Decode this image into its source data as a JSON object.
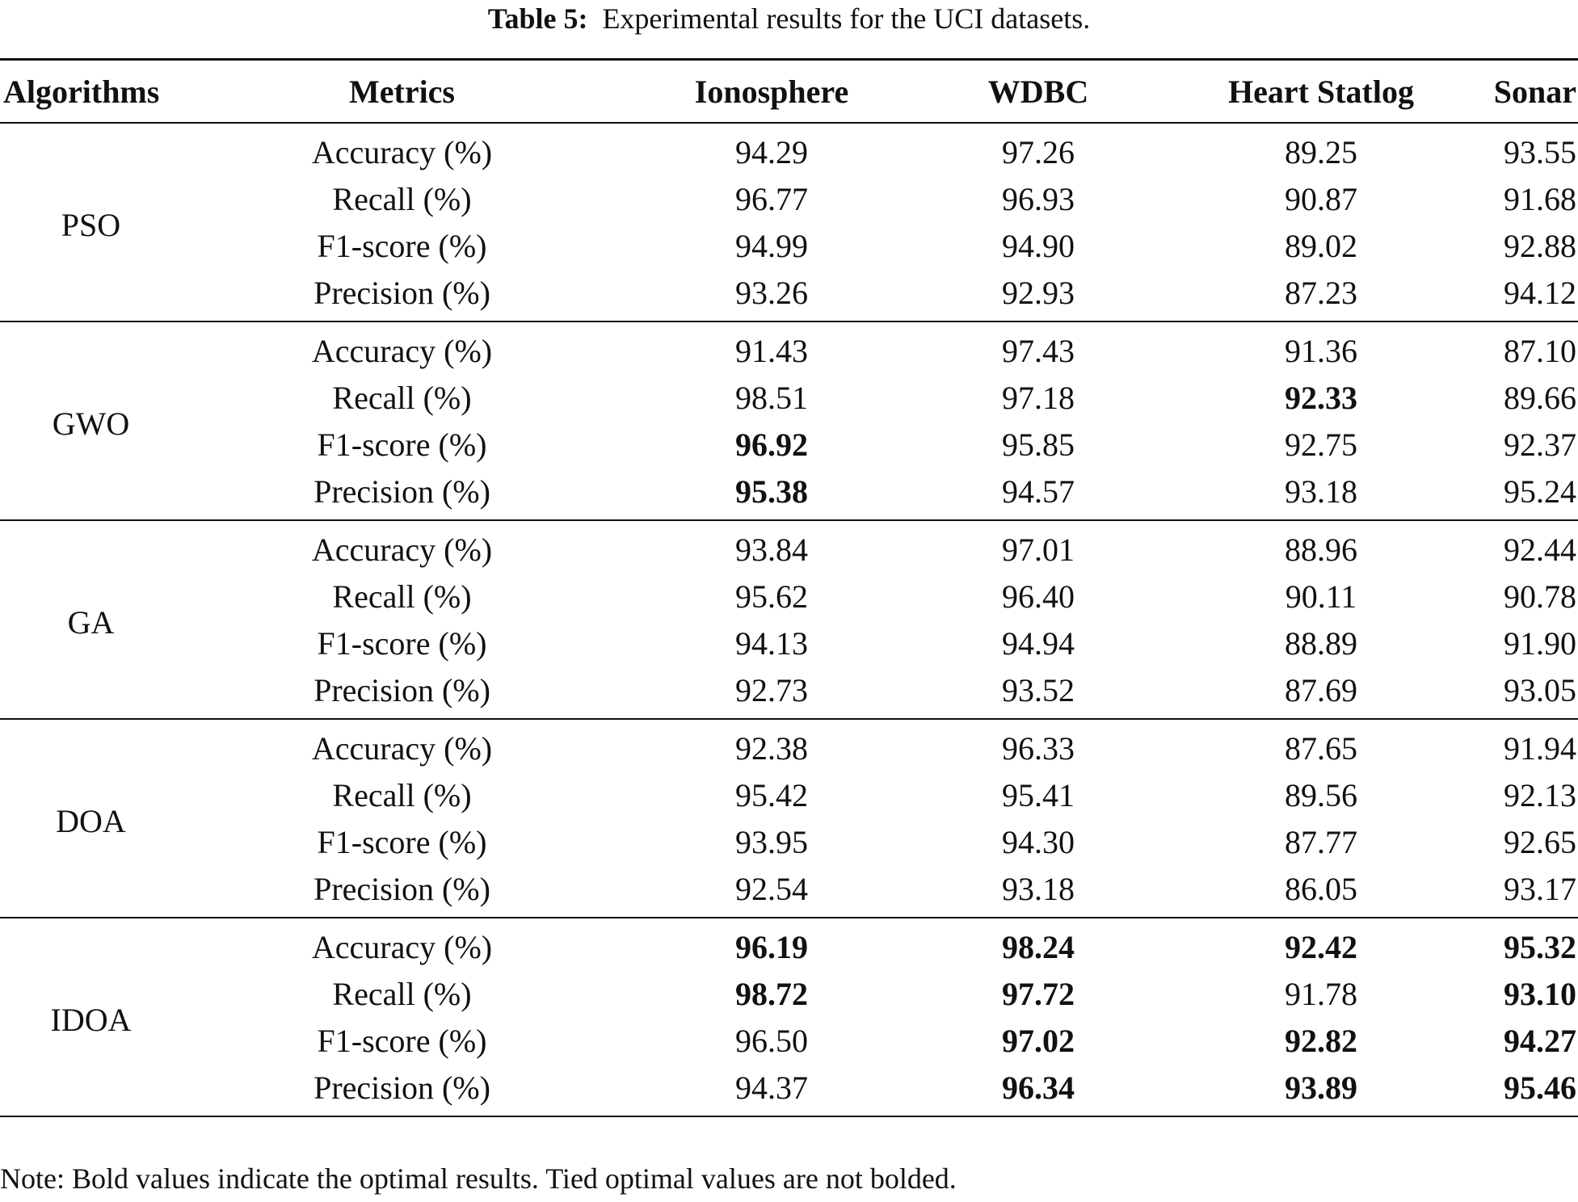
{
  "caption": {
    "label": "Table 5:",
    "text": "Experimental results for the UCI datasets."
  },
  "table": {
    "headers": [
      "Algorithms",
      "Metrics",
      "Ionosphere",
      "WDBC",
      "Heart Statlog",
      "Sonar"
    ],
    "groups": [
      {
        "algorithm": "PSO",
        "rows": [
          {
            "metric": "Accuracy (%)",
            "values": [
              "94.29",
              "97.26",
              "89.25",
              "93.55"
            ],
            "bold": [
              false,
              false,
              false,
              false
            ]
          },
          {
            "metric": "Recall (%)",
            "values": [
              "96.77",
              "96.93",
              "90.87",
              "91.68"
            ],
            "bold": [
              false,
              false,
              false,
              false
            ]
          },
          {
            "metric": "F1-score (%)",
            "values": [
              "94.99",
              "94.90",
              "89.02",
              "92.88"
            ],
            "bold": [
              false,
              false,
              false,
              false
            ]
          },
          {
            "metric": "Precision (%)",
            "values": [
              "93.26",
              "92.93",
              "87.23",
              "94.12"
            ],
            "bold": [
              false,
              false,
              false,
              false
            ]
          }
        ]
      },
      {
        "algorithm": "GWO",
        "rows": [
          {
            "metric": "Accuracy (%)",
            "values": [
              "91.43",
              "97.43",
              "91.36",
              "87.10"
            ],
            "bold": [
              false,
              false,
              false,
              false
            ]
          },
          {
            "metric": "Recall (%)",
            "values": [
              "98.51",
              "97.18",
              "92.33",
              "89.66"
            ],
            "bold": [
              false,
              false,
              true,
              false
            ]
          },
          {
            "metric": "F1-score (%)",
            "values": [
              "96.92",
              "95.85",
              "92.75",
              "92.37"
            ],
            "bold": [
              true,
              false,
              false,
              false
            ]
          },
          {
            "metric": "Precision (%)",
            "values": [
              "95.38",
              "94.57",
              "93.18",
              "95.24"
            ],
            "bold": [
              true,
              false,
              false,
              false
            ]
          }
        ]
      },
      {
        "algorithm": "GA",
        "rows": [
          {
            "metric": "Accuracy (%)",
            "values": [
              "93.84",
              "97.01",
              "88.96",
              "92.44"
            ],
            "bold": [
              false,
              false,
              false,
              false
            ]
          },
          {
            "metric": "Recall (%)",
            "values": [
              "95.62",
              "96.40",
              "90.11",
              "90.78"
            ],
            "bold": [
              false,
              false,
              false,
              false
            ]
          },
          {
            "metric": "F1-score (%)",
            "values": [
              "94.13",
              "94.94",
              "88.89",
              "91.90"
            ],
            "bold": [
              false,
              false,
              false,
              false
            ]
          },
          {
            "metric": "Precision (%)",
            "values": [
              "92.73",
              "93.52",
              "87.69",
              "93.05"
            ],
            "bold": [
              false,
              false,
              false,
              false
            ]
          }
        ]
      },
      {
        "algorithm": "DOA",
        "rows": [
          {
            "metric": "Accuracy (%)",
            "values": [
              "92.38",
              "96.33",
              "87.65",
              "91.94"
            ],
            "bold": [
              false,
              false,
              false,
              false
            ]
          },
          {
            "metric": "Recall (%)",
            "values": [
              "95.42",
              "95.41",
              "89.56",
              "92.13"
            ],
            "bold": [
              false,
              false,
              false,
              false
            ]
          },
          {
            "metric": "F1-score (%)",
            "values": [
              "93.95",
              "94.30",
              "87.77",
              "92.65"
            ],
            "bold": [
              false,
              false,
              false,
              false
            ]
          },
          {
            "metric": "Precision (%)",
            "values": [
              "92.54",
              "93.18",
              "86.05",
              "93.17"
            ],
            "bold": [
              false,
              false,
              false,
              false
            ]
          }
        ]
      },
      {
        "algorithm": "IDOA",
        "rows": [
          {
            "metric": "Accuracy (%)",
            "values": [
              "96.19",
              "98.24",
              "92.42",
              "95.32"
            ],
            "bold": [
              true,
              true,
              true,
              true
            ]
          },
          {
            "metric": "Recall (%)",
            "values": [
              "98.72",
              "97.72",
              "91.78",
              "93.10"
            ],
            "bold": [
              true,
              true,
              false,
              true
            ]
          },
          {
            "metric": "F1-score (%)",
            "values": [
              "96.50",
              "97.02",
              "92.82",
              "94.27"
            ],
            "bold": [
              false,
              true,
              true,
              true
            ]
          },
          {
            "metric": "Precision (%)",
            "values": [
              "94.37",
              "96.34",
              "93.89",
              "95.46"
            ],
            "bold": [
              false,
              true,
              true,
              true
            ]
          }
        ]
      }
    ]
  },
  "note": "Note: Bold values indicate the optimal results. Tied optimal values are not bolded."
}
